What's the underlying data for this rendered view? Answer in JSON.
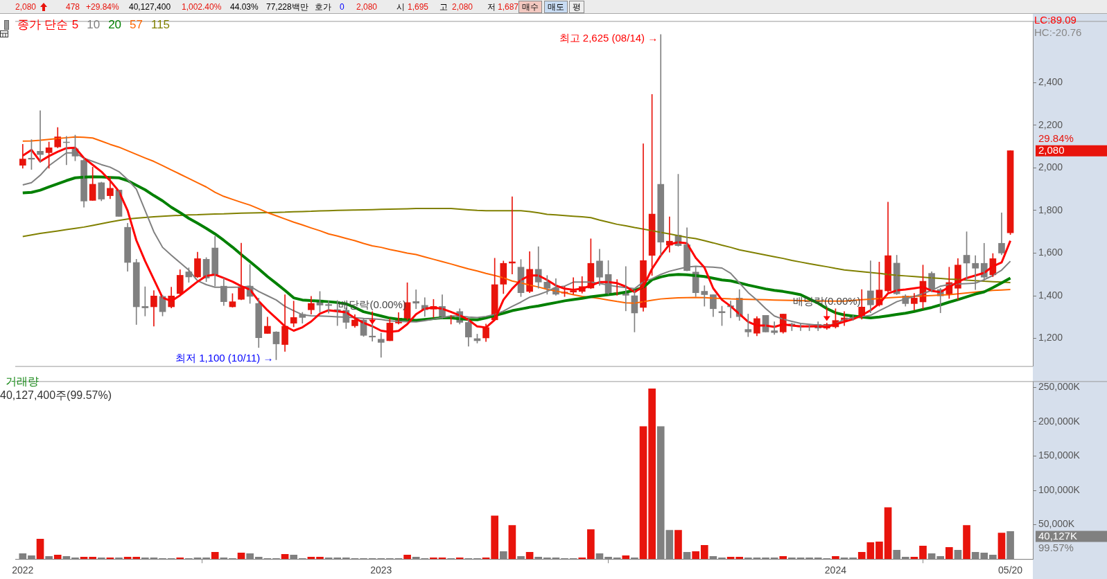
{
  "chart_data": [
    {
      "type": "other",
      "annotations": [
        "2,080",
        "478",
        "+29.84%",
        "40,127,400",
        "1,002.40%",
        "44.03%",
        "77,228백만",
        "호가",
        "0",
        "2,080",
        "시",
        "1,695",
        "고",
        "2,080",
        "저",
        "1,687",
        "매수",
        "매도",
        "평"
      ]
    },
    {
      "type": "candlestick",
      "legend_title": "종가 단순",
      "legend": "top left",
      "tick_labels": "y",
      "x": [
        "2022-03-21",
        "2022-03-28",
        "2022-04-04",
        "2022-04-11",
        "2022-04-18",
        "2022-04-25",
        "2022-05-02",
        "2022-05-09",
        "2022-05-16",
        "2022-05-23",
        "2022-05-30",
        "2022-06-06",
        "2022-06-13",
        "2022-06-20",
        "2022-06-27",
        "2022-07-04",
        "2022-07-11",
        "2022-07-18",
        "2022-07-25",
        "2022-08-01",
        "2022-08-08",
        "2022-08-15",
        "2022-08-22",
        "2022-08-29",
        "2022-09-05",
        "2022-09-12",
        "2022-09-19",
        "2022-09-26",
        "2022-10-03",
        "2022-10-10",
        "2022-10-17",
        "2022-10-24",
        "2022-10-31",
        "2022-11-07",
        "2022-11-14",
        "2022-11-21",
        "2022-11-28",
        "2022-12-05",
        "2022-12-12",
        "2022-12-19",
        "2022-12-26",
        "2023-01-02",
        "2023-01-09",
        "2023-01-16",
        "2023-01-23",
        "2023-01-30",
        "2023-02-06",
        "2023-02-13",
        "2023-02-20",
        "2023-02-27",
        "2023-03-06",
        "2023-03-13",
        "2023-03-20",
        "2023-03-27",
        "2023-04-03",
        "2023-04-10",
        "2023-04-17",
        "2023-04-24",
        "2023-05-01",
        "2023-05-08",
        "2023-05-15",
        "2023-05-22",
        "2023-05-29",
        "2023-06-05",
        "2023-06-12",
        "2023-06-19",
        "2023-06-26",
        "2023-07-03",
        "2023-07-10",
        "2023-07-17",
        "2023-07-24",
        "2023-07-31",
        "2023-08-07",
        "2023-08-14",
        "2023-08-21",
        "2023-08-28",
        "2023-09-04",
        "2023-09-11",
        "2023-09-18",
        "2023-09-25",
        "2023-10-02",
        "2023-10-09",
        "2023-10-16",
        "2023-10-23",
        "2023-10-30",
        "2023-11-06",
        "2023-11-13",
        "2023-11-20",
        "2023-11-27",
        "2023-12-04",
        "2023-12-11",
        "2023-12-18",
        "2023-12-25",
        "2024-01-01",
        "2024-01-08",
        "2024-01-15",
        "2024-01-22",
        "2024-01-29",
        "2024-02-05",
        "2024-02-12",
        "2024-02-19",
        "2024-02-26",
        "2024-03-04",
        "2024-03-11",
        "2024-03-18",
        "2024-03-25",
        "2024-04-01",
        "2024-04-08",
        "2024-04-15",
        "2024-04-22",
        "2024-04-29",
        "2024-05-06",
        "2024-05-13",
        "2024-05-20"
      ],
      "ohlc": [
        [
          2012,
          2110,
          1998,
          2041
        ],
        [
          2045,
          2132,
          1992,
          2040
        ],
        [
          2078,
          2268,
          2025,
          2062
        ],
        [
          2071,
          2121,
          1998,
          2094
        ],
        [
          2098,
          2189,
          2094,
          2145
        ],
        [
          2121,
          2148,
          2014,
          2118
        ],
        [
          2089,
          2153,
          2033,
          2055
        ],
        [
          2035,
          2046,
          1815,
          1844
        ],
        [
          1847,
          2003,
          1847,
          1923
        ],
        [
          1930,
          1933,
          1845,
          1853
        ],
        [
          1869,
          1958,
          1855,
          1904
        ],
        [
          1896,
          1896,
          1772,
          1772
        ],
        [
          1721,
          1740,
          1515,
          1556
        ],
        [
          1556,
          1571,
          1265,
          1348
        ],
        [
          1350,
          1442,
          1305,
          1343
        ],
        [
          1348,
          1424,
          1257,
          1399
        ],
        [
          1397,
          1402,
          1305,
          1325
        ],
        [
          1348,
          1440,
          1343,
          1399
        ],
        [
          1410,
          1522,
          1407,
          1496
        ],
        [
          1512,
          1531,
          1463,
          1488
        ],
        [
          1488,
          1604,
          1485,
          1574
        ],
        [
          1571,
          1579,
          1466,
          1483
        ],
        [
          1624,
          1679,
          1445,
          1499
        ],
        [
          1445,
          1483,
          1354,
          1372
        ],
        [
          1348,
          1410,
          1346,
          1372
        ],
        [
          1383,
          1647,
          1381,
          1442
        ],
        [
          1445,
          1547,
          1364,
          1397
        ],
        [
          1364,
          1389,
          1157,
          1203
        ],
        [
          1223,
          1300,
          1223,
          1257
        ],
        [
          1230,
          1232,
          1100,
          1174
        ],
        [
          1171,
          1405,
          1139,
          1257
        ],
        [
          1271,
          1375,
          1254,
          1298
        ],
        [
          1313,
          1322,
          1271,
          1298
        ],
        [
          1334,
          1397,
          1313,
          1364
        ],
        [
          1380,
          1420,
          1322,
          1356
        ],
        [
          1359,
          1375,
          1318,
          1354
        ],
        [
          1335,
          1378,
          1260,
          1329
        ],
        [
          1332,
          1343,
          1246,
          1275
        ],
        [
          1259,
          1311,
          1252,
          1286
        ],
        [
          1286,
          1295,
          1209,
          1214
        ],
        [
          1211,
          1295,
          1187,
          1206
        ],
        [
          1196,
          1225,
          1111,
          1181
        ],
        [
          1189,
          1293,
          1189,
          1272
        ],
        [
          1272,
          1321,
          1267,
          1295
        ],
        [
          1293,
          1461,
          1287,
          1368
        ],
        [
          1373,
          1428,
          1339,
          1365
        ],
        [
          1355,
          1391,
          1303,
          1334
        ],
        [
          1337,
          1383,
          1298,
          1350
        ],
        [
          1350,
          1405,
          1293,
          1298
        ],
        [
          1292,
          1308,
          1267,
          1305
        ],
        [
          1326,
          1339,
          1267,
          1275
        ],
        [
          1275,
          1289,
          1163,
          1206
        ],
        [
          1199,
          1220,
          1178,
          1189
        ],
        [
          1202,
          1267,
          1185,
          1251
        ],
        [
          1287,
          1576,
          1287,
          1452
        ],
        [
          1454,
          1563,
          1410,
          1552
        ],
        [
          1553,
          1864,
          1502,
          1559
        ],
        [
          1534,
          1570,
          1396,
          1414
        ],
        [
          1420,
          1607,
          1414,
          1524
        ],
        [
          1524,
          1630,
          1435,
          1464
        ],
        [
          1464,
          1495,
          1407,
          1435
        ],
        [
          1436,
          1480,
          1402,
          1407
        ],
        [
          1412,
          1443,
          1396,
          1417
        ],
        [
          1417,
          1485,
          1407,
          1424
        ],
        [
          1420,
          1490,
          1412,
          1443
        ],
        [
          1436,
          1667,
          1433,
          1552
        ],
        [
          1563,
          1618,
          1448,
          1487
        ],
        [
          1500,
          1565,
          1407,
          1410
        ],
        [
          1409,
          1476,
          1402,
          1414
        ],
        [
          1414,
          1537,
          1329,
          1402
        ],
        [
          1400,
          1425,
          1230,
          1319
        ],
        [
          1345,
          2113,
          1327,
          1565
        ],
        [
          1589,
          2344,
          1495,
          1783
        ],
        [
          1923,
          2625,
          1589,
          1651
        ],
        [
          1637,
          1770,
          1604,
          1656
        ],
        [
          1684,
          1970,
          1632,
          1635
        ],
        [
          1639,
          1719,
          1516,
          1518
        ],
        [
          1511,
          1537,
          1396,
          1414
        ],
        [
          1421,
          1447,
          1351,
          1405
        ],
        [
          1405,
          1405,
          1302,
          1339
        ],
        [
          1326,
          1351,
          1260,
          1320
        ],
        [
          1353,
          1375,
          1296,
          1348
        ],
        [
          1389,
          1429,
          1284,
          1302
        ],
        [
          1242,
          1314,
          1208,
          1230
        ],
        [
          1224,
          1302,
          1212,
          1293
        ],
        [
          1308,
          1308,
          1230,
          1230
        ],
        [
          1236,
          1278,
          1218,
          1227
        ],
        [
          1230,
          1314,
          1224,
          1314
        ],
        [
          1268,
          1272,
          1236,
          1260
        ],
        [
          1260,
          1266,
          1236,
          1254
        ],
        [
          1260,
          1266,
          1236,
          1254
        ],
        [
          1266,
          1278,
          1236,
          1248
        ],
        [
          1248,
          1272,
          1242,
          1266
        ],
        [
          1254,
          1339,
          1248,
          1284
        ],
        [
          1284,
          1326,
          1260,
          1296
        ],
        [
          1302,
          1308,
          1284,
          1296
        ],
        [
          1302,
          1429,
          1290,
          1347
        ],
        [
          1423,
          1564,
          1320,
          1357
        ],
        [
          1357,
          1558,
          1351,
          1427
        ],
        [
          1423,
          1839,
          1417,
          1588
        ],
        [
          1553,
          1590,
          1405,
          1409
        ],
        [
          1399,
          1405,
          1351,
          1363
        ],
        [
          1363,
          1411,
          1333,
          1389
        ],
        [
          1371,
          1544,
          1339,
          1468
        ],
        [
          1505,
          1513,
          1417,
          1429
        ],
        [
          1429,
          1435,
          1320,
          1399
        ],
        [
          1405,
          1534,
          1387,
          1462
        ],
        [
          1435,
          1574,
          1381,
          1544
        ],
        [
          1590,
          1700,
          1471,
          1553
        ],
        [
          1552,
          1588,
          1429,
          1529
        ],
        [
          1552,
          1646,
          1471,
          1487
        ],
        [
          1498,
          1598,
          1489,
          1574
        ],
        [
          1646,
          1789,
          1592,
          1600
        ],
        [
          1695,
          2080,
          1687,
          2080
        ]
      ],
      "series": [
        {
          "name": "5",
          "type": "line",
          "color": "#ff0000",
          "values": [
            2057,
            2084,
            2030,
            2055,
            2075,
            2092,
            2094,
            2046,
            2014,
            1982,
            1939,
            1890,
            1799,
            1660,
            1563,
            1477,
            1391,
            1375,
            1402,
            1434,
            1466,
            1493,
            1499,
            1483,
            1466,
            1445,
            1429,
            1375,
            1332,
            1295,
            1257,
            1236,
            1252,
            1279,
            1316,
            1332,
            1327,
            1322,
            1295,
            1273,
            1257,
            1236,
            1230,
            1235,
            1267,
            1313,
            1339,
            1345,
            1339,
            1324,
            1308,
            1287,
            1256,
            1251,
            1287,
            1381,
            1433,
            1474,
            1495,
            1495,
            1474,
            1448,
            1433,
            1428,
            1433,
            1448,
            1464,
            1464,
            1459,
            1443,
            1417,
            1443,
            1526,
            1589,
            1641,
            1651,
            1646,
            1578,
            1532,
            1435,
            1381,
            1351,
            1314,
            1278,
            1260,
            1260,
            1254,
            1266,
            1260,
            1256,
            1256,
            1256,
            1254,
            1266,
            1278,
            1290,
            1308,
            1332,
            1363,
            1411,
            1425,
            1429,
            1435,
            1441,
            1423,
            1417,
            1441,
            1465,
            1483,
            1495,
            1507,
            1538,
            1556,
            1658
          ]
        },
        {
          "name": "10",
          "type": "line",
          "color": "#808080",
          "values": [
            1920,
            1930,
            1965,
            2010,
            2040,
            2070,
            2070,
            2045,
            2030,
            2015,
            2003,
            1982,
            1945,
            1900,
            1800,
            1700,
            1627,
            1590,
            1555,
            1520,
            1470,
            1452,
            1440,
            1440,
            1440,
            1441,
            1445,
            1420,
            1400,
            1380,
            1350,
            1330,
            1311,
            1306,
            1305,
            1303,
            1301,
            1299,
            1297,
            1294,
            1292,
            1289,
            1282,
            1280,
            1278,
            1277,
            1283,
            1290,
            1298,
            1305,
            1305,
            1300,
            1298,
            1303,
            1312,
            1328,
            1350,
            1370,
            1393,
            1405,
            1420,
            1440,
            1445,
            1464,
            1464,
            1464,
            1458,
            1450,
            1443,
            1438,
            1433,
            1465,
            1480,
            1500,
            1515,
            1525,
            1535,
            1538,
            1536,
            1534,
            1530,
            1505,
            1460,
            1415,
            1380,
            1340,
            1305,
            1290,
            1280,
            1270,
            1266,
            1262,
            1260,
            1268,
            1290,
            1296,
            1302,
            1308,
            1330,
            1350,
            1372,
            1385,
            1397,
            1410,
            1425,
            1445,
            1453,
            1455,
            1457,
            1459,
            1475,
            1495,
            1520,
            1562
          ]
        },
        {
          "name": "20",
          "type": "line",
          "color": "#008000",
          "values": [
            1882,
            1885,
            1895,
            1910,
            1925,
            1940,
            1953,
            1956,
            1958,
            1957,
            1955,
            1953,
            1940,
            1918,
            1897,
            1870,
            1845,
            1815,
            1790,
            1763,
            1740,
            1716,
            1690,
            1660,
            1628,
            1593,
            1560,
            1526,
            1490,
            1458,
            1425,
            1390,
            1380,
            1377,
            1375,
            1372,
            1368,
            1362,
            1345,
            1325,
            1315,
            1305,
            1295,
            1290,
            1287,
            1285,
            1289,
            1293,
            1297,
            1296,
            1292,
            1289,
            1287,
            1296,
            1307,
            1318,
            1330,
            1338,
            1346,
            1352,
            1360,
            1368,
            1376,
            1382,
            1388,
            1395,
            1400,
            1405,
            1410,
            1417,
            1425,
            1440,
            1475,
            1488,
            1497,
            1500,
            1498,
            1494,
            1490,
            1482,
            1474,
            1470,
            1460,
            1450,
            1441,
            1432,
            1425,
            1420,
            1413,
            1405,
            1385,
            1365,
            1340,
            1320,
            1310,
            1305,
            1300,
            1296,
            1300,
            1306,
            1312,
            1318,
            1326,
            1336,
            1345,
            1357,
            1370,
            1382,
            1395,
            1408,
            1418,
            1438,
            1460,
            1483
          ]
        },
        {
          "name": "57",
          "type": "line",
          "color": "#ff6600",
          "values": [
            2125,
            2126,
            2129,
            2133,
            2137,
            2141,
            2145,
            2143,
            2140,
            2125,
            2110,
            2097,
            2080,
            2063,
            2046,
            2030,
            2010,
            1990,
            1970,
            1950,
            1930,
            1910,
            1885,
            1866,
            1852,
            1838,
            1825,
            1808,
            1790,
            1775,
            1760,
            1745,
            1732,
            1718,
            1705,
            1690,
            1680,
            1669,
            1658,
            1645,
            1634,
            1627,
            1617,
            1609,
            1600,
            1593,
            1582,
            1571,
            1560,
            1549,
            1537,
            1526,
            1516,
            1505,
            1495,
            1484,
            1469,
            1460,
            1450,
            1441,
            1430,
            1422,
            1414,
            1405,
            1397,
            1393,
            1387,
            1380,
            1373,
            1367,
            1365,
            1372,
            1379,
            1385,
            1388,
            1390,
            1391,
            1392,
            1391,
            1389,
            1387,
            1385,
            1384,
            1383,
            1382,
            1381,
            1380,
            1379,
            1378,
            1377,
            1376,
            1376,
            1375,
            1375,
            1375,
            1378,
            1381,
            1384,
            1387,
            1390,
            1393,
            1395,
            1397,
            1399,
            1401,
            1403,
            1405,
            1409,
            1413,
            1417,
            1421,
            1425,
            1427,
            1429
          ]
        },
        {
          "name": "115",
          "type": "line",
          "color": "#808000",
          "values": [
            1678,
            1685,
            1692,
            1698,
            1704,
            1710,
            1716,
            1722,
            1730,
            1738,
            1746,
            1753,
            1760,
            1764,
            1767,
            1770,
            1773,
            1775,
            1777,
            1779,
            1780,
            1782,
            1783,
            1784,
            1786,
            1787,
            1788,
            1789,
            1790,
            1791,
            1792,
            1794,
            1795,
            1796,
            1798,
            1799,
            1800,
            1801,
            1802,
            1803,
            1804,
            1805,
            1806,
            1807,
            1808,
            1809,
            1809,
            1809,
            1809,
            1809,
            1806,
            1803,
            1800,
            1799,
            1799,
            1799,
            1799,
            1799,
            1795,
            1789,
            1782,
            1779,
            1776,
            1773,
            1770,
            1766,
            1755,
            1745,
            1735,
            1728,
            1720,
            1713,
            1705,
            1697,
            1690,
            1682,
            1674,
            1668,
            1658,
            1648,
            1637,
            1627,
            1615,
            1607,
            1599,
            1591,
            1583,
            1575,
            1566,
            1558,
            1550,
            1543,
            1536,
            1528,
            1521,
            1517,
            1513,
            1509,
            1505,
            1500,
            1496,
            1493,
            1490,
            1487,
            1484,
            1481,
            1478,
            1476,
            1473,
            1471,
            1468,
            1466,
            1464,
            1462
          ]
        }
      ],
      "xlim": [
        "2022-03-15",
        "2024-06-07"
      ],
      "ylim": [
        1070,
        2685
      ],
      "yticks": [
        {
          "value": 1200,
          "label": "1,200"
        },
        {
          "value": 1400,
          "label": "1,400"
        },
        {
          "value": 1600,
          "label": "1,600"
        },
        {
          "value": 1800,
          "label": "1,800"
        },
        {
          "value": 2000,
          "label": "2,000"
        },
        {
          "value": 2200,
          "label": "2,200"
        },
        {
          "value": 2400,
          "label": "2,400"
        }
      ],
      "annotations": [
        {
          "text": "최고 2,625 (08/14) →",
          "x": "2023-08-14",
          "y": 2625
        },
        {
          "text": "최저 1,100 (10/11) →",
          "x": "2022-10-10",
          "y": 1100
        },
        {
          "text": "배당락(0.00%)",
          "x": "2022-12-26",
          "y": 1262
        },
        {
          "text": "배당락(0.00%)",
          "x": "2023-12-25",
          "y": 1278
        },
        "2,080",
        "29.84%",
        "LC:89.09",
        "HC:-20.76"
      ]
    },
    {
      "type": "bar",
      "title": "거래량",
      "subtitle": "40,127,400주(99.57%)",
      "x": [
        "2022-03-21",
        "2022-03-28",
        "2022-04-04",
        "2022-04-11",
        "2022-04-18",
        "2022-04-25",
        "2022-05-02",
        "2022-05-09",
        "2022-05-16",
        "2022-05-23",
        "2022-05-30",
        "2022-06-06",
        "2022-06-13",
        "2022-06-20",
        "2022-06-27",
        "2022-07-04",
        "2022-07-11",
        "2022-07-18",
        "2022-07-25",
        "2022-08-01",
        "2022-08-08",
        "2022-08-15",
        "2022-08-22",
        "2022-08-29",
        "2022-09-05",
        "2022-09-12",
        "2022-09-19",
        "2022-09-26",
        "2022-10-03",
        "2022-10-10",
        "2022-10-17",
        "2022-10-24",
        "2022-10-31",
        "2022-11-07",
        "2022-11-14",
        "2022-11-21",
        "2022-11-28",
        "2022-12-05",
        "2022-12-12",
        "2022-12-19",
        "2022-12-26",
        "2023-01-02",
        "2023-01-09",
        "2023-01-16",
        "2023-01-23",
        "2023-01-30",
        "2023-02-06",
        "2023-02-13",
        "2023-02-20",
        "2023-02-27",
        "2023-03-06",
        "2023-03-13",
        "2023-03-20",
        "2023-03-27",
        "2023-04-03",
        "2023-04-10",
        "2023-04-17",
        "2023-04-24",
        "2023-05-01",
        "2023-05-08",
        "2023-05-15",
        "2023-05-22",
        "2023-05-29",
        "2023-06-05",
        "2023-06-12",
        "2023-06-19",
        "2023-06-26",
        "2023-07-03",
        "2023-07-10",
        "2023-07-17",
        "2023-07-24",
        "2023-07-31",
        "2023-08-07",
        "2023-08-14",
        "2023-08-21",
        "2023-08-28",
        "2023-09-04",
        "2023-09-11",
        "2023-09-18",
        "2023-09-25",
        "2023-10-02",
        "2023-10-09",
        "2023-10-16",
        "2023-10-23",
        "2023-10-30",
        "2023-11-06",
        "2023-11-13",
        "2023-11-20",
        "2023-11-27",
        "2023-12-04",
        "2023-12-11",
        "2023-12-18",
        "2023-12-25",
        "2024-01-01",
        "2024-01-08",
        "2024-01-15",
        "2024-01-22",
        "2024-01-29",
        "2024-02-05",
        "2024-02-12",
        "2024-02-19",
        "2024-02-26",
        "2024-03-04",
        "2024-03-11",
        "2024-03-18",
        "2024-03-25",
        "2024-04-01",
        "2024-04-08",
        "2024-04-15",
        "2024-04-22",
        "2024-04-29",
        "2024-05-06",
        "2024-05-13",
        "2024-05-20"
      ],
      "values": [
        8000,
        5000,
        29000,
        4000,
        6000,
        4000,
        2000,
        3000,
        3000,
        2000,
        2000,
        2000,
        3000,
        3000,
        2000,
        2000,
        1000,
        1000,
        2000,
        1000,
        2000,
        2000,
        10000,
        2000,
        1000,
        9000,
        8000,
        3000,
        1000,
        1000,
        7000,
        6000,
        1000,
        3000,
        3000,
        2000,
        2000,
        2000,
        1000,
        1000,
        1000,
        1000,
        1000,
        1000,
        6000,
        3000,
        1000,
        2000,
        2000,
        1000,
        2000,
        1000,
        1000,
        2000,
        63000,
        11000,
        49000,
        4000,
        10000,
        3000,
        2000,
        2000,
        1000,
        1000,
        2000,
        43000,
        8000,
        3000,
        2000,
        5000,
        2000,
        193000,
        248000,
        193000,
        42000,
        42000,
        10000,
        11000,
        20000,
        4000,
        2000,
        3000,
        3000,
        2000,
        2000,
        2000,
        2000,
        4000,
        2000,
        2000,
        2000,
        2000,
        1000,
        4000,
        2000,
        2000,
        10000,
        24000,
        25000,
        75000,
        13000,
        3000,
        3000,
        19000,
        8000,
        4000,
        17000,
        13000,
        49000,
        10000,
        9000,
        6000,
        38000,
        40127
      ],
      "colors": [
        "#808080",
        "#808080",
        "#e8140c",
        "#808080",
        "#e8140c",
        "#808080",
        "#808080",
        "#e8140c",
        "#e8140c",
        "#808080",
        "#e8140c",
        "#808080",
        "#e8140c",
        "#e8140c",
        "#808080",
        "#808080",
        "#808080",
        "#808080",
        "#e8140c",
        "#808080",
        "#808080",
        "#808080",
        "#e8140c",
        "#808080",
        "#808080",
        "#e8140c",
        "#808080",
        "#808080",
        "#808080",
        "#808080",
        "#e8140c",
        "#808080",
        "#808080",
        "#e8140c",
        "#e8140c",
        "#808080",
        "#808080",
        "#808080",
        "#808080",
        "#808080",
        "#808080",
        "#808080",
        "#808080",
        "#808080",
        "#e8140c",
        "#808080",
        "#808080",
        "#e8140c",
        "#e8140c",
        "#808080",
        "#e8140c",
        "#808080",
        "#808080",
        "#e8140c",
        "#e8140c",
        "#808080",
        "#e8140c",
        "#808080",
        "#e8140c",
        "#808080",
        "#808080",
        "#808080",
        "#808080",
        "#808080",
        "#e8140c",
        "#e8140c",
        "#808080",
        "#808080",
        "#808080",
        "#e8140c",
        "#808080",
        "#e8140c",
        "#e8140c",
        "#808080",
        "#808080",
        "#e8140c",
        "#808080",
        "#e8140c",
        "#e8140c",
        "#808080",
        "#808080",
        "#e8140c",
        "#e8140c",
        "#808080",
        "#808080",
        "#808080",
        "#808080",
        "#e8140c",
        "#808080",
        "#808080",
        "#808080",
        "#808080",
        "#808080",
        "#e8140c",
        "#808080",
        "#808080",
        "#e8140c",
        "#e8140c",
        "#e8140c",
        "#e8140c",
        "#808080",
        "#808080",
        "#e8140c",
        "#e8140c",
        "#808080",
        "#808080",
        "#e8140c",
        "#808080",
        "#e8140c",
        "#808080",
        "#808080",
        "#808080",
        "#e8140c",
        "#808080"
      ],
      "xlim": [
        "2022-03-15",
        "2024-06-07"
      ],
      "xticks": [
        {
          "value": "2022-03-21",
          "label": "2022"
        },
        {
          "value": "2023-01-02",
          "label": "2023"
        },
        {
          "value": "2024-01-01",
          "label": "2024"
        },
        {
          "value": "2024-05-20",
          "label": "05/20"
        }
      ],
      "ylim": [
        0,
        258000
      ],
      "yticks": [
        {
          "value": 50000,
          "label": "50,000K"
        },
        {
          "value": 100000,
          "label": "100,000K"
        },
        {
          "value": 150000,
          "label": "150,000K"
        },
        {
          "value": 200000,
          "label": "200,000K"
        },
        {
          "value": 250000,
          "label": "250,000K"
        }
      ],
      "annotations": [
        "40,127K",
        "99.57%"
      ]
    }
  ]
}
